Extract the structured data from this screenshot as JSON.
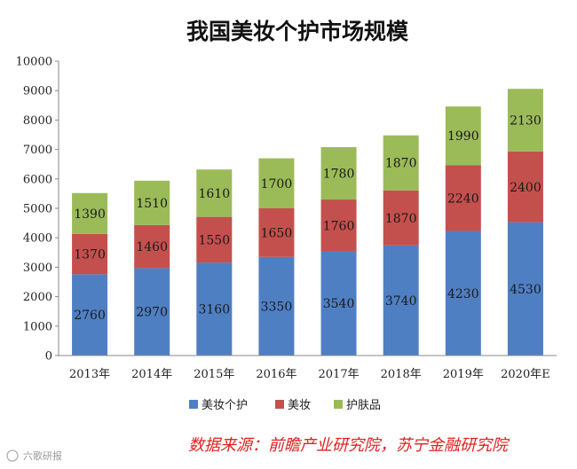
{
  "chart_data": {
    "type": "bar",
    "stacked": true,
    "title": "我国美妆个护市场规模",
    "categories": [
      "2013年",
      "2014年",
      "2015年",
      "2016年",
      "2017年",
      "2018年",
      "2019年",
      "2020年E"
    ],
    "series": [
      {
        "name": "美妆个护",
        "color": "#4f7fc3",
        "values": [
          2760,
          2970,
          3160,
          3350,
          3540,
          3740,
          4230,
          4530
        ]
      },
      {
        "name": "美妆",
        "color": "#c4504d",
        "values": [
          1370,
          1460,
          1550,
          1650,
          1760,
          1870,
          2240,
          2400
        ]
      },
      {
        "name": "护肤品",
        "color": "#9bbb59",
        "values": [
          1390,
          1510,
          1610,
          1700,
          1780,
          1870,
          1990,
          2130
        ]
      }
    ],
    "ylim": [
      0,
      10000
    ],
    "yticks": [
      0,
      1000,
      2000,
      3000,
      4000,
      5000,
      6000,
      7000,
      8000,
      9000,
      10000
    ],
    "xlabel": "",
    "ylabel": "",
    "legend": "bottom"
  },
  "source": {
    "text": "数据来源：前瞻产业研究院，苏宁金融研究院",
    "color": "#e02020"
  },
  "watermark": {
    "text": "六歌研报"
  }
}
